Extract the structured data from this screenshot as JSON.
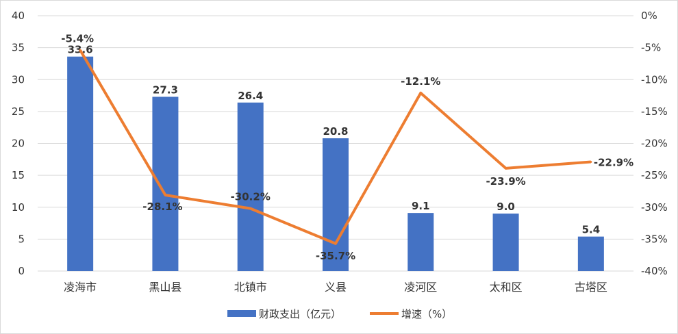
{
  "chart_data": {
    "type": "bar+line",
    "categories": [
      "凌海市",
      "黑山县",
      "北镇市",
      "义县",
      "凌河区",
      "太和区",
      "古塔区"
    ],
    "series": [
      {
        "name": "财政支出（亿元）",
        "type": "bar",
        "axis": "left",
        "values": [
          33.6,
          27.3,
          26.4,
          20.8,
          9.1,
          9.0,
          5.4
        ],
        "labels": [
          "33.6",
          "27.3",
          "26.4",
          "20.8",
          "9.1",
          "9.0",
          "5.4"
        ],
        "color": "#4472c4"
      },
      {
        "name": "增速（%）",
        "type": "line",
        "axis": "right",
        "values": [
          -5.4,
          -28.1,
          -30.2,
          -35.7,
          -12.1,
          -23.9,
          -22.9
        ],
        "labels": [
          "-5.4%",
          "-28.1%",
          "-30.2%",
          "-35.7%",
          "-12.1%",
          "-23.9%",
          "-22.9%"
        ],
        "color": "#ed7d31"
      }
    ],
    "left_axis": {
      "ylim": [
        0,
        40
      ],
      "ticks": [
        0,
        5,
        10,
        15,
        20,
        25,
        30,
        35,
        40
      ],
      "tick_labels": [
        "0",
        "5",
        "10",
        "15",
        "20",
        "25",
        "30",
        "35",
        "40"
      ]
    },
    "right_axis": {
      "ylim": [
        -40,
        0
      ],
      "ticks": [
        0,
        -5,
        -10,
        -15,
        -20,
        -25,
        -30,
        -35,
        -40
      ],
      "tick_labels": [
        "0%",
        "-5%",
        "-10%",
        "-15%",
        "-20%",
        "-25%",
        "-30%",
        "-35%",
        "-40%"
      ]
    },
    "grid": true,
    "legend_position": "bottom"
  }
}
